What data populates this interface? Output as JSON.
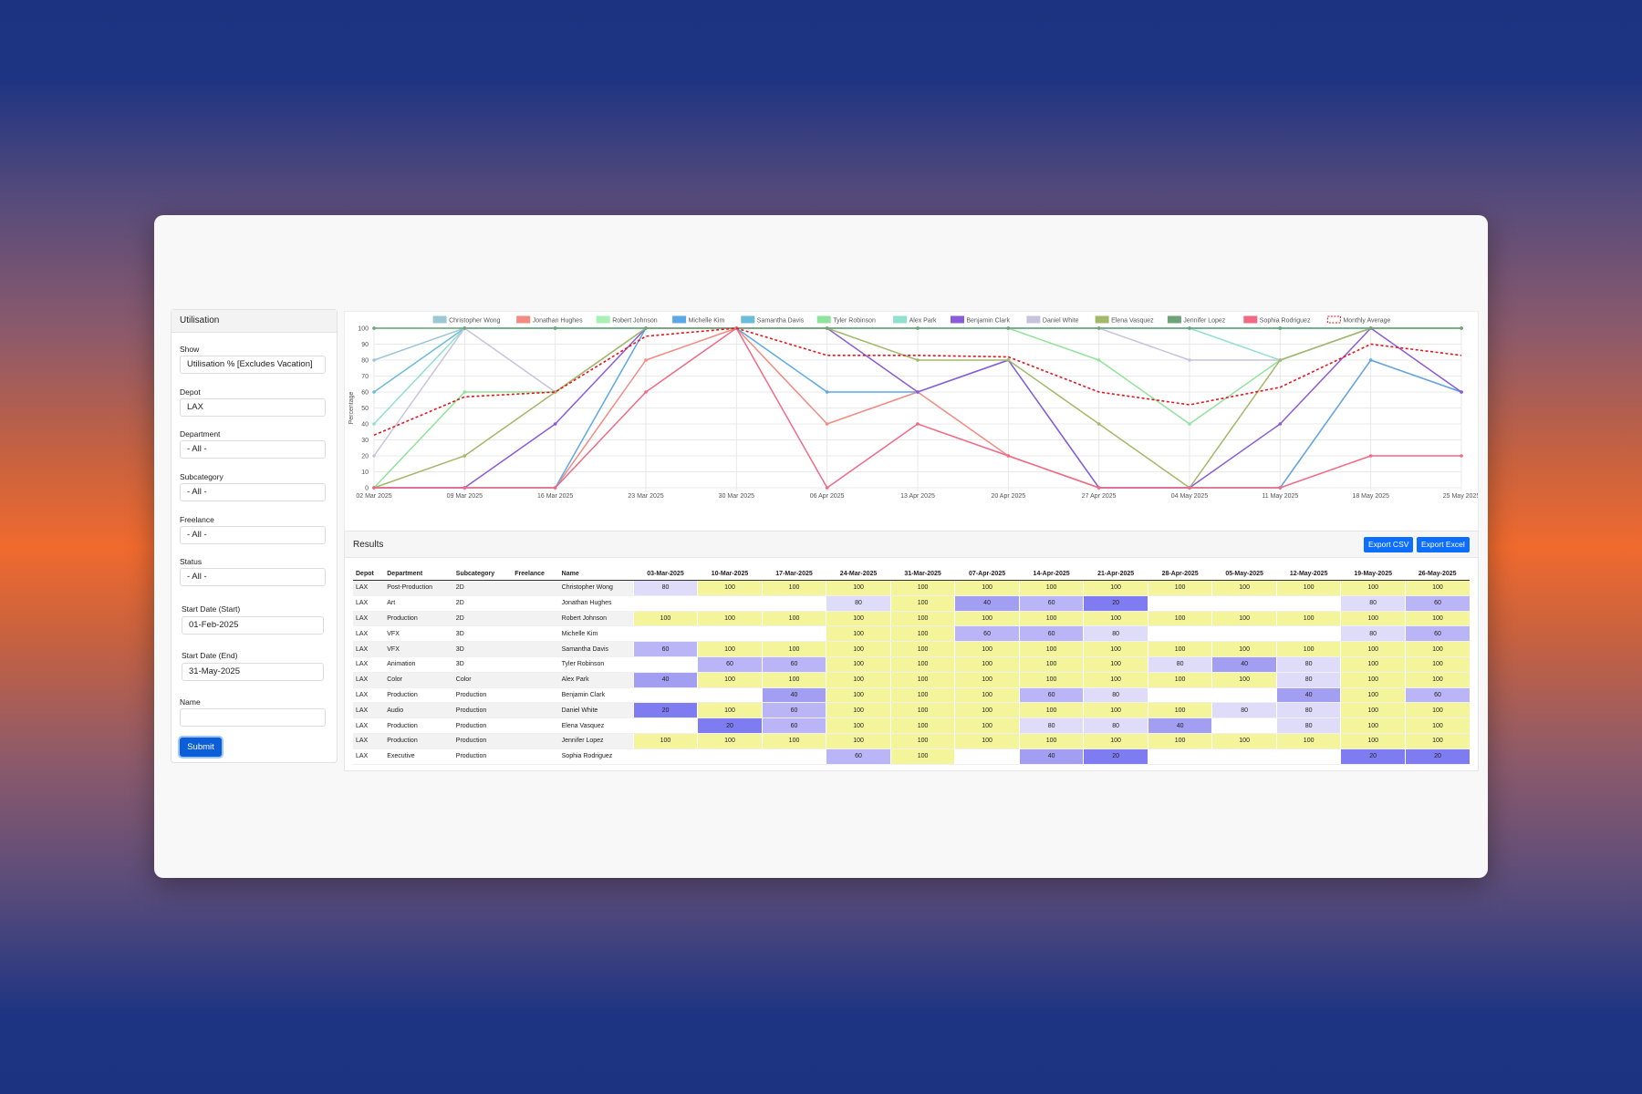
{
  "sidebar": {
    "title": "Utilisation",
    "fields": [
      {
        "label": "Show",
        "value": "Utilisation % [Excludes Vacation]"
      },
      {
        "label": "Depot",
        "value": "LAX"
      },
      {
        "label": "Department",
        "value": "- All -"
      },
      {
        "label": "Subcategory",
        "value": "- All -"
      },
      {
        "label": "Freelance",
        "value": "- All -"
      },
      {
        "label": "Status",
        "value": "- All -"
      },
      {
        "label": "Start Date (Start)",
        "value": "01-Feb-2025"
      },
      {
        "label": "Start Date (End)",
        "value": "31-May-2025"
      },
      {
        "label": "Name",
        "value": ""
      }
    ],
    "submit_label": "Submit"
  },
  "chart_data": {
    "type": "line",
    "ylabel": "Percentage",
    "ylim": [
      0,
      100
    ],
    "yticks": [
      "0",
      "10",
      "20",
      "30",
      "40",
      "50",
      "60",
      "70",
      "80",
      "90",
      "100"
    ],
    "x": [
      "02 Mar 2025",
      "09 Mar 2025",
      "16 Mar 2025",
      "23 Mar 2025",
      "30 Mar 2025",
      "06 Apr 2025",
      "13 Apr 2025",
      "20 Apr 2025",
      "27 Apr 2025",
      "04 May 2025",
      "11 May 2025",
      "18 May 2025",
      "25 May 2025"
    ],
    "legend_position": "top",
    "grid": true,
    "series": [
      {
        "name": "Christopher Wong",
        "color": "#9cc7d4",
        "values": [
          80,
          100,
          100,
          100,
          100,
          100,
          100,
          100,
          100,
          100,
          100,
          100,
          100
        ]
      },
      {
        "name": "Jonathan Hughes",
        "color": "#f28b82",
        "values": [
          0,
          0,
          0,
          80,
          100,
          40,
          60,
          20,
          0,
          0,
          0,
          80,
          60
        ]
      },
      {
        "name": "Robert Johnson",
        "color": "#a8f0b4",
        "values": [
          100,
          100,
          100,
          100,
          100,
          100,
          100,
          100,
          100,
          100,
          100,
          100,
          100
        ]
      },
      {
        "name": "Michelle Kim",
        "color": "#5aa9e6",
        "values": [
          0,
          0,
          0,
          100,
          100,
          60,
          60,
          80,
          0,
          0,
          0,
          80,
          60
        ]
      },
      {
        "name": "Samantha Davis",
        "color": "#6bbcd8",
        "values": [
          60,
          100,
          100,
          100,
          100,
          100,
          100,
          100,
          100,
          100,
          100,
          100,
          100
        ]
      },
      {
        "name": "Tyler Robinson",
        "color": "#8fe39a",
        "values": [
          0,
          60,
          60,
          100,
          100,
          100,
          100,
          100,
          80,
          40,
          80,
          100,
          100
        ]
      },
      {
        "name": "Alex Park",
        "color": "#8fe0cc",
        "values": [
          40,
          100,
          100,
          100,
          100,
          100,
          100,
          100,
          100,
          100,
          80,
          100,
          100
        ]
      },
      {
        "name": "Benjamin Clark",
        "color": "#8a5cd8",
        "values": [
          0,
          0,
          40,
          100,
          100,
          100,
          60,
          80,
          0,
          0,
          40,
          100,
          60
        ]
      },
      {
        "name": "Daniel White",
        "color": "#c8c3dc",
        "values": [
          20,
          100,
          60,
          100,
          100,
          100,
          100,
          100,
          100,
          80,
          80,
          100,
          100
        ]
      },
      {
        "name": "Elena Vasquez",
        "color": "#a4b86a",
        "values": [
          0,
          20,
          60,
          100,
          100,
          100,
          80,
          80,
          40,
          0,
          80,
          100,
          100
        ]
      },
      {
        "name": "Jennifer Lopez",
        "color": "#6ea37a",
        "values": [
          100,
          100,
          100,
          100,
          100,
          100,
          100,
          100,
          100,
          100,
          100,
          100,
          100
        ]
      },
      {
        "name": "Sophia Rodriguez",
        "color": "#f06a86",
        "values": [
          0,
          0,
          0,
          60,
          100,
          0,
          40,
          20,
          0,
          0,
          0,
          20,
          20
        ]
      },
      {
        "name": "Monthly Average",
        "color": "#e8141c",
        "dashed": true,
        "values": [
          33,
          57,
          60,
          95,
          100,
          83,
          83,
          82,
          60,
          52,
          63,
          90,
          83
        ]
      }
    ]
  },
  "results": {
    "title": "Results",
    "export_csv": "Export CSV",
    "export_excel": "Export Excel",
    "columns": [
      "Depot",
      "Department",
      "Subcategory",
      "Freelance",
      "Name"
    ],
    "weeks": [
      "03-Mar-2025",
      "10-Mar-2025",
      "17-Mar-2025",
      "24-Mar-2025",
      "31-Mar-2025",
      "07-Apr-2025",
      "14-Apr-2025",
      "21-Apr-2025",
      "28-Apr-2025",
      "05-May-2025",
      "12-May-2025",
      "19-May-2025",
      "26-May-2025"
    ],
    "rows": [
      {
        "depot": "LAX",
        "department": "Post-Production",
        "subcategory": "2D",
        "freelance": "",
        "name": "Christopher Wong",
        "values": [
          "80",
          "100",
          "100",
          "100",
          "100",
          "100",
          "100",
          "100",
          "100",
          "100",
          "100",
          "100",
          "100"
        ]
      },
      {
        "depot": "LAX",
        "department": "Art",
        "subcategory": "2D",
        "freelance": "",
        "name": "Jonathan Hughes",
        "values": [
          "",
          "",
          "",
          "80",
          "100",
          "40",
          "60",
          "20",
          "",
          "",
          "",
          "80",
          "60"
        ]
      },
      {
        "depot": "LAX",
        "department": "Production",
        "subcategory": "2D",
        "freelance": "",
        "name": "Robert Johnson",
        "values": [
          "100",
          "100",
          "100",
          "100",
          "100",
          "100",
          "100",
          "100",
          "100",
          "100",
          "100",
          "100",
          "100"
        ]
      },
      {
        "depot": "LAX",
        "department": "VFX",
        "subcategory": "3D",
        "freelance": "",
        "name": "Michelle Kim",
        "values": [
          "",
          "",
          "",
          "100",
          "100",
          "60",
          "60",
          "80",
          "",
          "",
          "",
          "80",
          "60"
        ]
      },
      {
        "depot": "LAX",
        "department": "VFX",
        "subcategory": "3D",
        "freelance": "",
        "name": "Samantha Davis",
        "values": [
          "60",
          "100",
          "100",
          "100",
          "100",
          "100",
          "100",
          "100",
          "100",
          "100",
          "100",
          "100",
          "100"
        ]
      },
      {
        "depot": "LAX",
        "department": "Animation",
        "subcategory": "3D",
        "freelance": "",
        "name": "Tyler Robinson",
        "values": [
          "",
          "60",
          "60",
          "100",
          "100",
          "100",
          "100",
          "100",
          "80",
          "40",
          "80",
          "100",
          "100"
        ]
      },
      {
        "depot": "LAX",
        "department": "Color",
        "subcategory": "Color",
        "freelance": "",
        "name": "Alex Park",
        "values": [
          "40",
          "100",
          "100",
          "100",
          "100",
          "100",
          "100",
          "100",
          "100",
          "100",
          "80",
          "100",
          "100"
        ]
      },
      {
        "depot": "LAX",
        "department": "Production",
        "subcategory": "Production",
        "freelance": "",
        "name": "Benjamin Clark",
        "values": [
          "",
          "",
          "40",
          "100",
          "100",
          "100",
          "60",
          "80",
          "",
          "",
          "40",
          "100",
          "60"
        ]
      },
      {
        "depot": "LAX",
        "department": "Audio",
        "subcategory": "Production",
        "freelance": "",
        "name": "Daniel White",
        "values": [
          "20",
          "100",
          "60",
          "100",
          "100",
          "100",
          "100",
          "100",
          "100",
          "80",
          "80",
          "100",
          "100"
        ]
      },
      {
        "depot": "LAX",
        "department": "Production",
        "subcategory": "Production",
        "freelance": "",
        "name": "Elena Vasquez",
        "values": [
          "",
          "20",
          "60",
          "100",
          "100",
          "100",
          "80",
          "80",
          "40",
          "",
          "80",
          "100",
          "100"
        ]
      },
      {
        "depot": "LAX",
        "department": "Production",
        "subcategory": "Production",
        "freelance": "",
        "name": "Jennifer Lopez",
        "values": [
          "100",
          "100",
          "100",
          "100",
          "100",
          "100",
          "100",
          "100",
          "100",
          "100",
          "100",
          "100",
          "100"
        ]
      },
      {
        "depot": "LAX",
        "department": "Executive",
        "subcategory": "Production",
        "freelance": "",
        "name": "Sophia Rodriguez",
        "values": [
          "",
          "",
          "",
          "60",
          "100",
          "",
          "40",
          "20",
          "",
          "",
          "",
          "20",
          "20"
        ]
      }
    ],
    "cell_colors": {
      "100": "#f4f59b",
      "80": "#dedcf8",
      "60": "#b9b5f6",
      "40": "#a29ff3",
      "20": "#7e7cf0",
      "": "#ffffff"
    }
  }
}
